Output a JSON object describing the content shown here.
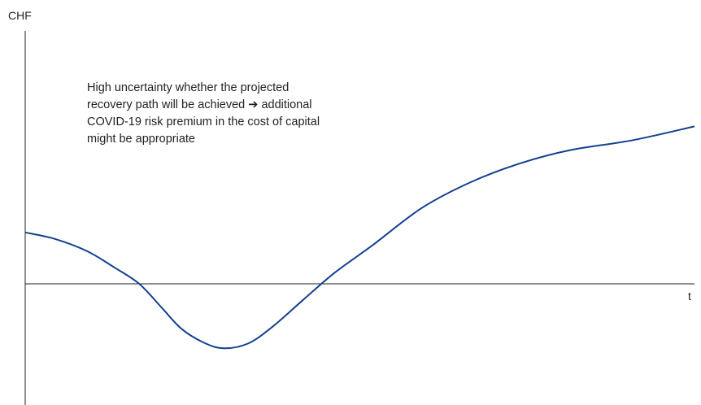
{
  "chart_data": {
    "type": "line",
    "title": "",
    "xlabel": "t",
    "ylabel": "CHF",
    "grid": false,
    "annotations": [
      "High uncertainty whether the projected recovery path will be achieved ➔ additional COVID-19 risk premium in the cost of capital might be appropriate"
    ],
    "series": [
      {
        "color": "#14418f",
        "x": [
          0,
          1.2,
          2.5,
          3.6,
          4.6,
          5.5,
          6.3,
          7.2,
          8.0,
          9.0,
          10.0,
          11.2,
          12.5,
          14.0,
          16.0,
          18.0,
          20.0,
          22.0,
          24.5,
          27.0
        ],
        "y": [
          0.63,
          0.55,
          0.4,
          0.2,
          0.0,
          -0.29,
          -0.55,
          -0.72,
          -0.79,
          -0.73,
          -0.52,
          -0.2,
          0.14,
          0.47,
          0.93,
          1.25,
          1.48,
          1.64,
          1.76,
          1.93
        ]
      }
    ],
    "xlim": [
      0,
      27
    ],
    "ylim": [
      -1.5,
      3.1
    ]
  },
  "colors": {
    "axis": "#222222",
    "line": "#14418f"
  }
}
